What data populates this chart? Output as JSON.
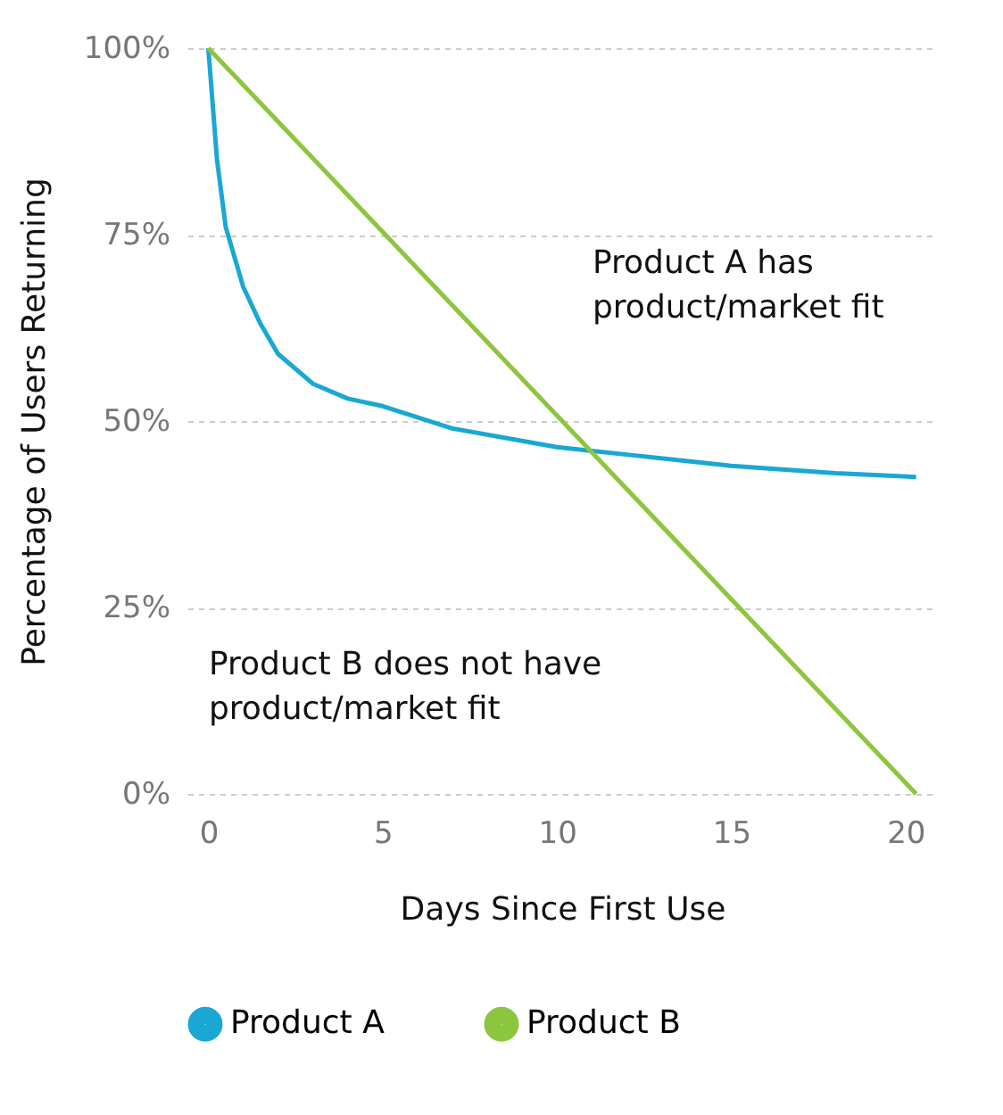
{
  "chart_data": {
    "type": "line",
    "xlabel": "Days Since First Use",
    "ylabel": "Percentage of Users Returning",
    "xlim": [
      -0.6,
      20.9
    ],
    "xticks": [
      0,
      5,
      10,
      15,
      20
    ],
    "ylim": [
      0,
      100
    ],
    "yticks": [
      {
        "value": 0,
        "label": "0%"
      },
      {
        "value": 25,
        "label": "25%"
      },
      {
        "value": 50,
        "label": "50%"
      },
      {
        "value": 75,
        "label": "75%"
      },
      {
        "value": 100,
        "label": "100%"
      }
    ],
    "grid": "y",
    "legend": "bottom",
    "marker": "none",
    "line_style": "solid",
    "series": [
      {
        "name": "Product A",
        "color": "#1aa7d4",
        "x": [
          0,
          0.25,
          0.5,
          1,
          1.5,
          2,
          3,
          4,
          5,
          7,
          10,
          12,
          15,
          18,
          20.3
        ],
        "values": [
          100,
          85,
          76,
          68,
          63,
          59,
          55,
          53,
          52,
          49,
          46.5,
          45.5,
          44,
          43,
          42.5
        ]
      },
      {
        "name": "Product B",
        "color": "#8cc63f",
        "x": [
          0,
          20.3
        ],
        "values": [
          100,
          0
        ]
      }
    ],
    "annotations": [
      "Product A has\nproduct/market fit",
      "Product B does not have\nproduct/market fit"
    ]
  }
}
